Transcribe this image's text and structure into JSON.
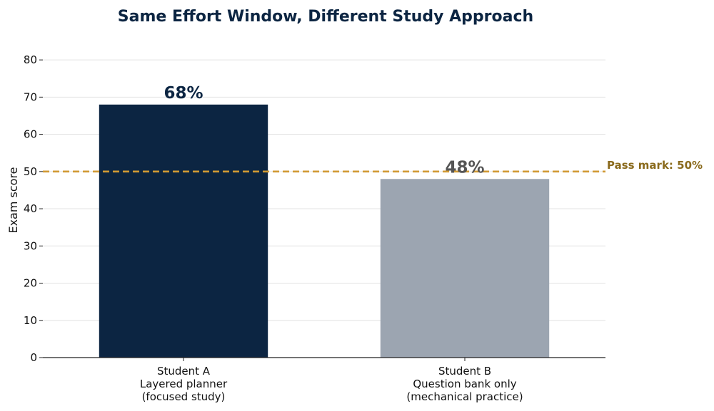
{
  "chart_data": {
    "type": "bar",
    "title": "Same Effort Window, Different Study Approach",
    "xlabel": "",
    "ylabel": "Exam score",
    "ylim": [
      0,
      85
    ],
    "yticks": [
      0,
      10,
      20,
      30,
      40,
      50,
      60,
      70,
      80
    ],
    "grid": true,
    "legend": "none",
    "categories": [
      [
        "Student A",
        "Layered planner",
        "(focused study)"
      ],
      [
        "Student B",
        "Question bank only",
        "(mechanical practice)"
      ]
    ],
    "values": [
      68,
      48
    ],
    "data_labels": [
      "68%",
      "48%"
    ],
    "bar_colors": [
      "#0c2542",
      "#9ca5b1"
    ],
    "data_label_colors": [
      "#0c2542",
      "#555555"
    ],
    "reference_line": {
      "value": 50,
      "label": "Pass mark: 50%",
      "color": "#d19a34",
      "label_color": "#8a6a1c"
    },
    "title_color": "#0c2542",
    "grid_color": "#e3e3e3"
  }
}
